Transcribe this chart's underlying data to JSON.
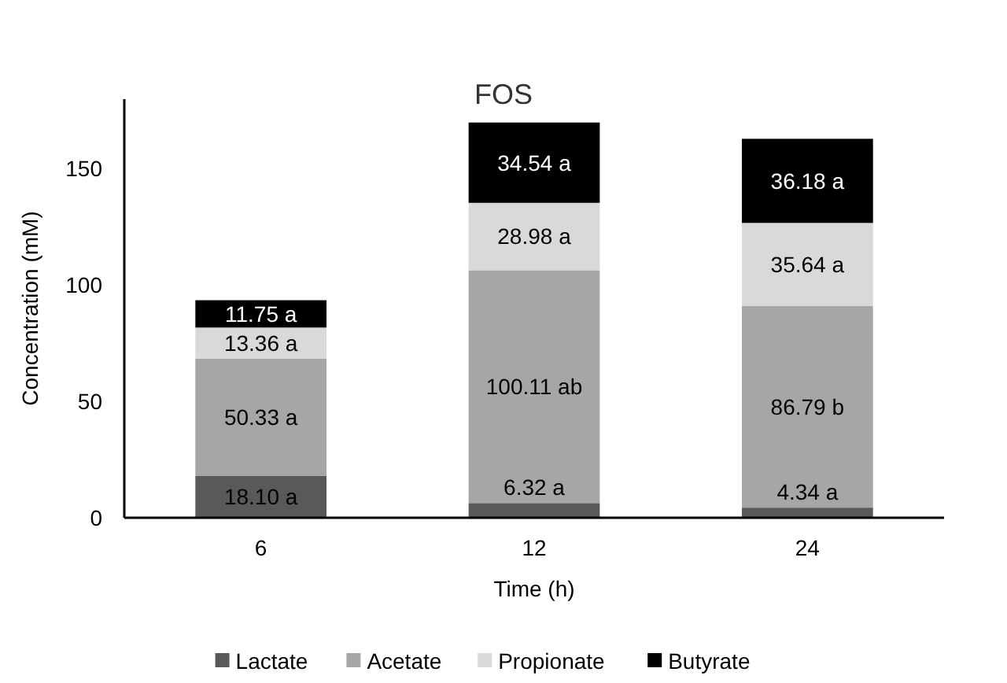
{
  "chart_data": {
    "type": "bar",
    "title": "FOS",
    "xlabel": "Time (h)",
    "ylabel": "Concentration (mM)",
    "categories": [
      "6",
      "12",
      "24"
    ],
    "stacked": true,
    "ylim": [
      0,
      180
    ],
    "yticks": [
      0,
      50,
      100,
      150
    ],
    "grid": false,
    "legend": "bottom",
    "series": [
      {
        "name": "Lactate",
        "color": "#595959",
        "values": [
          18.1,
          6.32,
          4.34
        ],
        "value_labels": [
          "18.10 a",
          "6.32 a",
          "4.34 a"
        ]
      },
      {
        "name": "Acetate",
        "color": "#a6a6a6",
        "values": [
          50.33,
          100.11,
          86.79
        ],
        "value_labels": [
          "50.33 a",
          "100.11 ab",
          "86.79 b"
        ]
      },
      {
        "name": "Propionate",
        "color": "#d9d9d9",
        "values": [
          13.36,
          28.98,
          35.64
        ],
        "value_labels": [
          "13.36 a",
          "28.98 a",
          "35.64 a"
        ]
      },
      {
        "name": "Butyrate",
        "color": "#000000",
        "values": [
          11.75,
          34.54,
          36.18
        ],
        "value_labels": [
          "11.75 a",
          "34.54 a",
          "36.18 a"
        ]
      }
    ]
  }
}
